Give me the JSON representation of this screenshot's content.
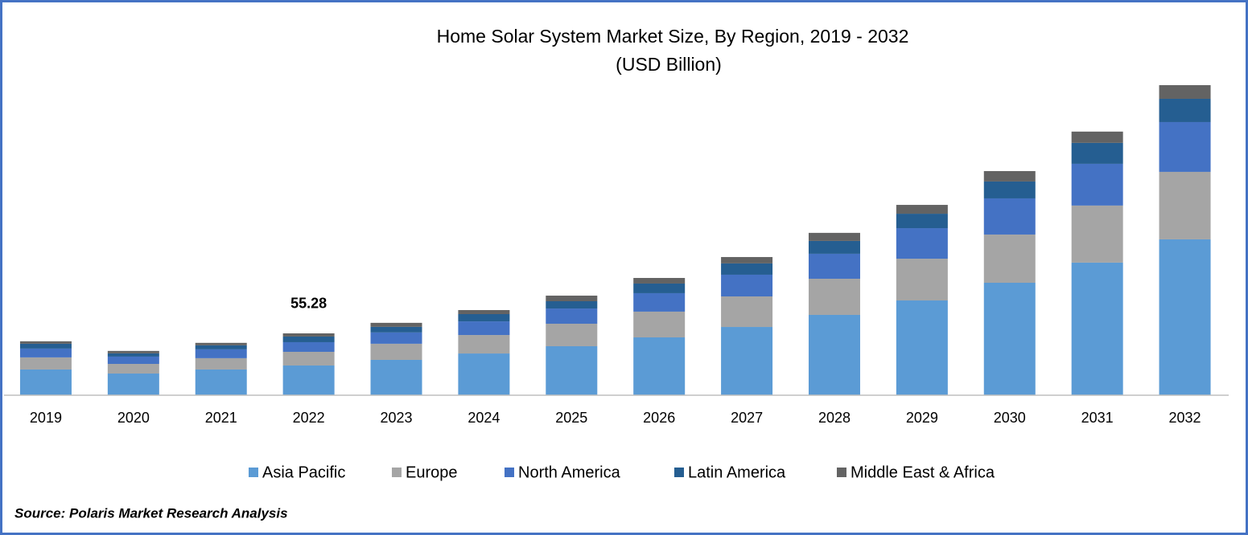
{
  "chart_data": {
    "type": "stacked_bar",
    "title": "Home Solar System Market Size, By Region, 2019 - 2032",
    "subtitle": "(USD Billion)",
    "categories": [
      "2019",
      "2020",
      "2021",
      "2022",
      "2023",
      "2024",
      "2025",
      "2026",
      "2027",
      "2028",
      "2029",
      "2030",
      "2031",
      "2032"
    ],
    "series": [
      {
        "name": "Asia Pacific",
        "color": "#5b9bd5",
        "values": [
          23.0,
          19.4,
          23.0,
          26.57,
          31.6,
          37.3,
          43.8,
          51.7,
          61.0,
          71.8,
          84.7,
          100.5,
          118.5,
          139.3
        ]
      },
      {
        "name": "Europe",
        "color": "#a5a5a5",
        "values": [
          10.8,
          8.6,
          10.1,
          12.21,
          14.4,
          16.5,
          20.1,
          23.0,
          27.3,
          32.3,
          37.3,
          43.1,
          51.0,
          60.3
        ]
      },
      {
        "name": "North America",
        "color": "#4472c4",
        "values": [
          7.9,
          6.5,
          7.9,
          8.62,
          10.1,
          12.2,
          13.6,
          16.5,
          19.4,
          22.3,
          27.3,
          32.3,
          37.3,
          44.5
        ]
      },
      {
        "name": "Latin America",
        "color": "#255e91",
        "values": [
          4.3,
          2.9,
          3.6,
          5.03,
          5.0,
          6.5,
          6.5,
          8.6,
          10.1,
          11.5,
          12.9,
          15.1,
          18.7,
          20.8
        ]
      },
      {
        "name": "Middle East & Africa",
        "color": "#636363",
        "values": [
          2.2,
          2.2,
          2.2,
          2.85,
          3.6,
          3.6,
          5.0,
          5.0,
          5.7,
          7.2,
          7.9,
          9.3,
          10.1,
          12.2
        ]
      }
    ],
    "annotations": [
      {
        "category": "2022",
        "value": 55.28
      }
    ],
    "legend": "bottom",
    "source": "Source: Polaris Market Research Analysis"
  }
}
